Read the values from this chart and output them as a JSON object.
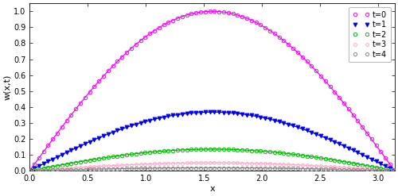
{
  "xlabel": "x",
  "ylabel": "w(x,t)",
  "xlim": [
    0,
    3.14159265
  ],
  "ylim": [
    0,
    1.05
  ],
  "yticks": [
    0,
    0.1,
    0.2,
    0.3,
    0.4,
    0.5,
    0.6,
    0.7,
    0.8,
    0.9,
    1.0
  ],
  "xticks": [
    0,
    0.5,
    1.0,
    1.5,
    2.0,
    2.5,
    3.0
  ],
  "curves": [
    {
      "decay": 0.0,
      "color": "#ff00ff",
      "marker": "o",
      "label": "t=0",
      "filled": false,
      "msize": 3.2
    },
    {
      "decay": 1.0,
      "color": "#0000ee",
      "marker": "v",
      "label": "t=1",
      "filled": true,
      "msize": 3.5
    },
    {
      "decay": 2.0,
      "color": "#00bb00",
      "marker": "o",
      "label": "t=2",
      "filled": false,
      "msize": 3.2
    },
    {
      "decay": 3.0,
      "color": "#ffaacc",
      "marker": "o",
      "label": "t=3",
      "filled": false,
      "msize": 2.8
    },
    {
      "decay": 4.0,
      "color": "#888888",
      "marker": "o",
      "label": "t=4",
      "filled": false,
      "msize": 3.0
    }
  ],
  "n_line": 300,
  "n_markers": 80,
  "lw": 0.9,
  "background_color": "#ffffff"
}
